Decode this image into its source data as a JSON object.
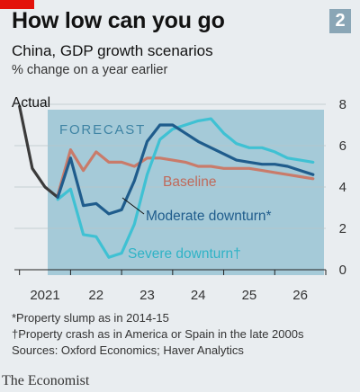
{
  "header": {
    "title": "How low can you go",
    "badge": "2",
    "subtitle": "China, GDP growth scenarios",
    "units": "% change on a year earlier"
  },
  "chart_data": {
    "type": "line",
    "title": "How low can you go",
    "subtitle": "China, GDP growth scenarios",
    "ylabel": "% change on a year earlier",
    "ylim": [
      0,
      8
    ],
    "yticks": [
      0,
      2,
      4,
      6,
      8
    ],
    "xlim": [
      2020.9,
      2027.0
    ],
    "xticks": [
      "2021",
      "22",
      "23",
      "24",
      "25",
      "26"
    ],
    "shaded_region_label": "FORECAST",
    "forecast_start": 2021.75,
    "series": [
      {
        "name": "Actual",
        "color": "#3b3b3b",
        "points": [
          [
            2021.0,
            7.9
          ],
          [
            2021.25,
            4.9
          ],
          [
            2021.5,
            4.0
          ],
          [
            2021.75,
            3.5
          ]
        ]
      },
      {
        "name": "Baseline",
        "color": "#c97b6a",
        "points": [
          [
            2021.75,
            3.6
          ],
          [
            2022.0,
            5.8
          ],
          [
            2022.25,
            4.8
          ],
          [
            2022.5,
            5.7
          ],
          [
            2022.75,
            5.2
          ],
          [
            2023.0,
            5.2
          ],
          [
            2023.25,
            5.0
          ],
          [
            2023.5,
            5.4
          ],
          [
            2023.75,
            5.4
          ],
          [
            2024.0,
            5.3
          ],
          [
            2024.25,
            5.2
          ],
          [
            2024.5,
            5.0
          ],
          [
            2024.75,
            5.0
          ],
          [
            2025.0,
            4.9
          ],
          [
            2025.25,
            4.9
          ],
          [
            2025.5,
            4.9
          ],
          [
            2025.75,
            4.8
          ],
          [
            2026.0,
            4.7
          ],
          [
            2026.25,
            4.6
          ],
          [
            2026.5,
            4.5
          ],
          [
            2026.75,
            4.4
          ]
        ]
      },
      {
        "name": "Moderate downturn*",
        "color": "#1f5c8c",
        "points": [
          [
            2021.75,
            3.5
          ],
          [
            2022.0,
            5.4
          ],
          [
            2022.25,
            3.1
          ],
          [
            2022.5,
            3.2
          ],
          [
            2022.75,
            2.7
          ],
          [
            2023.0,
            2.9
          ],
          [
            2023.25,
            4.3
          ],
          [
            2023.5,
            6.2
          ],
          [
            2023.75,
            7.0
          ],
          [
            2024.0,
            7.0
          ],
          [
            2024.25,
            6.6
          ],
          [
            2024.5,
            6.2
          ],
          [
            2024.75,
            5.9
          ],
          [
            2025.0,
            5.6
          ],
          [
            2025.25,
            5.3
          ],
          [
            2025.5,
            5.2
          ],
          [
            2025.75,
            5.1
          ],
          [
            2026.0,
            5.1
          ],
          [
            2026.25,
            5.0
          ],
          [
            2026.5,
            4.8
          ],
          [
            2026.75,
            4.6
          ]
        ]
      },
      {
        "name": "Severe downturn†",
        "color": "#3fc1d3",
        "points": [
          [
            2021.75,
            3.4
          ],
          [
            2022.0,
            3.9
          ],
          [
            2022.25,
            1.7
          ],
          [
            2022.5,
            1.6
          ],
          [
            2022.75,
            0.6
          ],
          [
            2023.0,
            0.8
          ],
          [
            2023.25,
            2.2
          ],
          [
            2023.5,
            4.6
          ],
          [
            2023.75,
            6.3
          ],
          [
            2024.0,
            6.8
          ],
          [
            2024.25,
            7.0
          ],
          [
            2024.5,
            7.2
          ],
          [
            2024.75,
            7.3
          ],
          [
            2025.0,
            6.6
          ],
          [
            2025.25,
            6.1
          ],
          [
            2025.5,
            5.9
          ],
          [
            2025.75,
            5.9
          ],
          [
            2026.0,
            5.7
          ],
          [
            2026.25,
            5.4
          ],
          [
            2026.5,
            5.3
          ],
          [
            2026.75,
            5.2
          ]
        ]
      }
    ]
  },
  "footnotes": [
    "*Property slump as in 2014-15",
    "†Property crash as in America or Spain in the late 2000s",
    "Sources: Oxford Economics; Haver Analytics"
  ],
  "brand": "The Economist",
  "colors": {
    "background": "#e9edf0",
    "forecast_band": "#a5cad8",
    "accent_red": "#e3120b",
    "badge": "#8aa6b6"
  }
}
